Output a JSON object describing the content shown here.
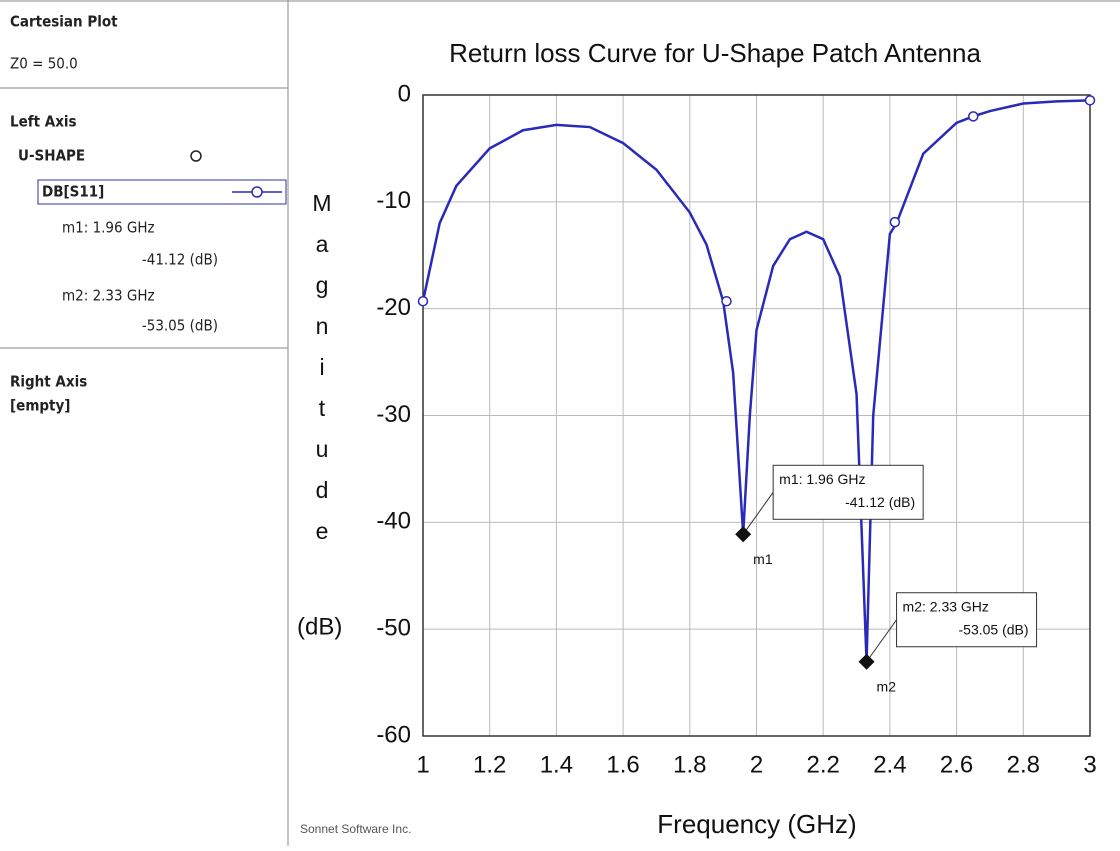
{
  "panel": {
    "heading": "Cartesian Plot",
    "z0": "Z0 = 50.0",
    "left_axis": "Left Axis",
    "project": "U-SHAPE",
    "trace": "DB[S11]",
    "right_axis": "Right Axis",
    "right_axis_content": "[empty]",
    "footer": "Sonnet Software Inc."
  },
  "chart_data": {
    "type": "line",
    "title": "Return loss Curve for U-Shape Patch Antenna",
    "xlabel": "Frequency (GHz)",
    "ylabel": "Magnitude",
    "ylabel_unit": "(dB)",
    "xlim": [
      1,
      3
    ],
    "ylim": [
      -60,
      0
    ],
    "xticks": [
      1,
      1.2,
      1.4,
      1.6,
      1.8,
      2,
      2.2,
      2.4,
      2.6,
      2.8,
      3
    ],
    "yticks": [
      0,
      -10,
      -20,
      -30,
      -40,
      -50,
      -60
    ],
    "grid": true,
    "x": [
      1.0,
      1.05,
      1.1,
      1.2,
      1.3,
      1.4,
      1.5,
      1.6,
      1.7,
      1.8,
      1.85,
      1.9,
      1.93,
      1.96,
      1.98,
      2.0,
      2.05,
      2.1,
      2.15,
      2.2,
      2.25,
      2.3,
      2.33,
      2.35,
      2.4,
      2.42,
      2.5,
      2.6,
      2.65,
      2.7,
      2.8,
      2.9,
      3.0
    ],
    "series": [
      {
        "name": "DB[S11]",
        "color": "#2a2ab8",
        "values": [
          -19.3,
          -12,
          -8.5,
          -5,
          -3.3,
          -2.8,
          -3,
          -4.5,
          -7,
          -11,
          -14,
          -19.3,
          -26,
          -41.12,
          -30,
          -22,
          -16,
          -13.5,
          -12.8,
          -13.5,
          -17,
          -28,
          -53.05,
          -30,
          -13,
          -12,
          -5.5,
          -2.6,
          -2,
          -1.5,
          -0.8,
          -0.6,
          -0.5
        ]
      }
    ],
    "symbol_points": {
      "x": [
        1.0,
        1.91,
        2.415,
        2.65,
        3.0
      ],
      "y": [
        -19.3,
        -19.3,
        -11.9,
        -2,
        -0.5
      ]
    },
    "markers": [
      {
        "name": "m1",
        "x": 1.96,
        "y": -41.12,
        "label": "m1: 1.96 GHz",
        "value_label": "-41.12  (dB)"
      },
      {
        "name": "m2",
        "x": 2.33,
        "y": -53.05,
        "label": "m2: 2.33 GHz",
        "value_label": "-53.05  (dB)"
      }
    ]
  }
}
